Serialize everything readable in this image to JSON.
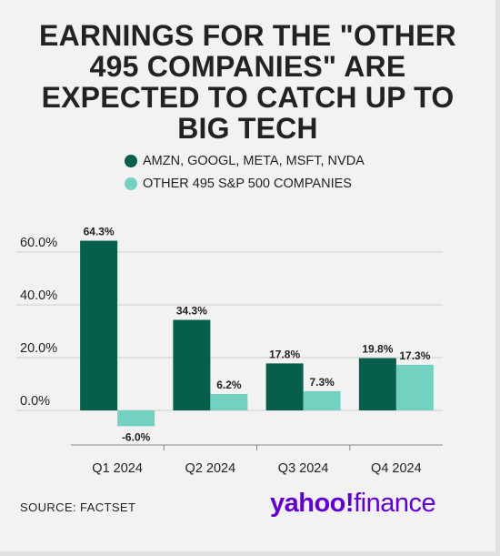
{
  "title": "EARNINGS FOR THE \"OTHER 495 COMPANIES\" ARE EXPECTED TO CATCH UP TO BIG TECH",
  "source": "SOURCE: FACTSET",
  "logo": {
    "brand": "yahoo!",
    "product": "finance"
  },
  "colors": {
    "series1": "#075e4b",
    "series2": "#73d1c2",
    "grid": "#cfcfcf",
    "axis": "#888888",
    "text": "#222222",
    "brand": "#6001d2"
  },
  "chart_data": {
    "type": "bar",
    "title": "",
    "xlabel": "",
    "ylabel": "",
    "categories": [
      "Q1 2024",
      "Q2 2024",
      "Q3 2024",
      "Q4 2024"
    ],
    "series": [
      {
        "name": "AMZN, GOOGL, META, MSFT, NVDA",
        "values": [
          64.3,
          34.3,
          17.8,
          19.8
        ],
        "labels": [
          "64.3%",
          "34.3%",
          "17.8%",
          "19.8%"
        ]
      },
      {
        "name": "OTHER 495 S&P 500 COMPANIES",
        "values": [
          -6.0,
          6.2,
          7.3,
          17.3
        ],
        "labels": [
          "-6.0%",
          "6.2%",
          "7.3%",
          "17.3%"
        ]
      }
    ],
    "ylim": [
      -10,
      70
    ],
    "yticks": [
      0,
      20,
      40,
      60
    ],
    "ytick_labels": [
      "0.0%",
      "20.0%",
      "40.0%",
      "60.0%"
    ],
    "grid": true,
    "legend_position": "top"
  }
}
